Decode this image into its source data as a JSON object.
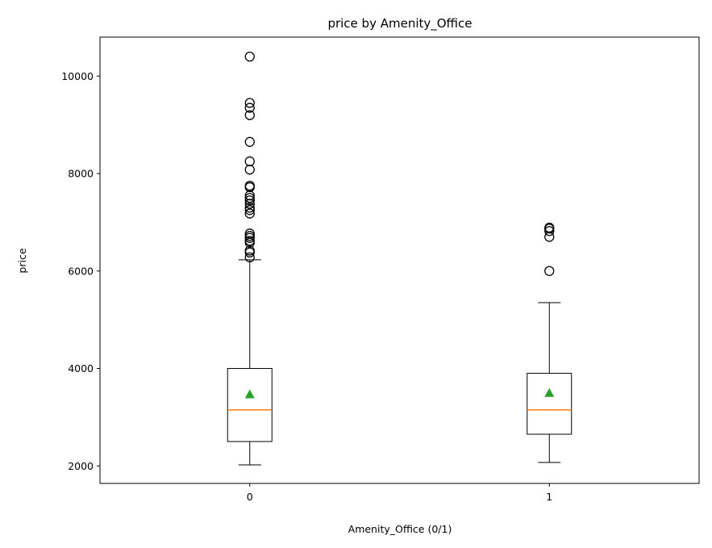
{
  "chart_data": {
    "type": "boxplot",
    "title": "price by Amenity_Office",
    "xlabel": "Amenity_Office (0/1)",
    "ylabel": "price",
    "ylim": [
      1640,
      10800
    ],
    "yticks": [
      2000,
      4000,
      6000,
      8000,
      10000
    ],
    "categories": [
      "0",
      "1"
    ],
    "grid": false,
    "legend": "none",
    "colors": {
      "box": "#000000",
      "median": "#ff7f0e",
      "mean": "#2ca02c",
      "flier": "#000000"
    },
    "boxes": [
      {
        "category": "0",
        "whisker_low": 2020,
        "q1": 2500,
        "median": 3150,
        "q3": 4000,
        "whisker_high": 6230,
        "mean": 3470,
        "fliers": [
          6280,
          6380,
          6420,
          6580,
          6620,
          6680,
          6720,
          6770,
          7180,
          7250,
          7300,
          7380,
          7450,
          7500,
          7550,
          7720,
          7750,
          8080,
          8250,
          8650,
          9200,
          9350,
          9450,
          10400
        ]
      },
      {
        "category": "1",
        "whisker_low": 2070,
        "q1": 2650,
        "median": 3150,
        "q3": 3900,
        "whisker_high": 5350,
        "mean": 3500,
        "fliers": [
          6000,
          6700,
          6820,
          6870,
          6890
        ]
      }
    ]
  }
}
